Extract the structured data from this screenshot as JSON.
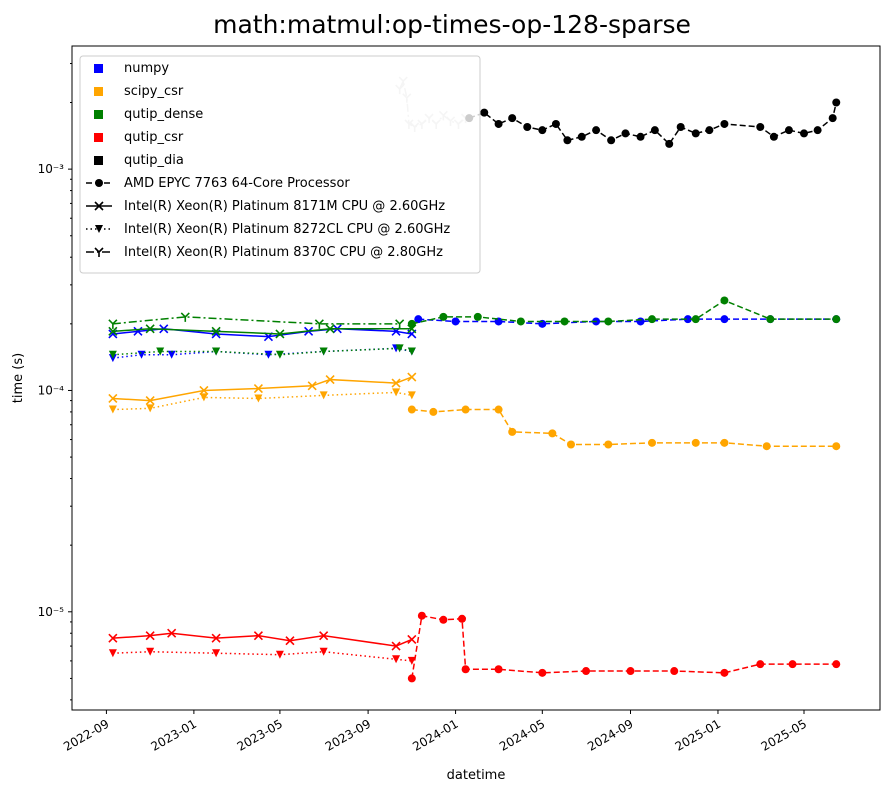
{
  "chart_data": {
    "type": "line",
    "title": "math:matmul:op-times-op-128-sparse",
    "xlabel": "datetime",
    "ylabel": "time (s)",
    "yscale": "log",
    "ylim": [
      3.6e-06,
      0.0036
    ],
    "xlim": [
      "2022-07-15",
      "2025-08-15"
    ],
    "grid": false,
    "legend_position": "top-left",
    "x_ticks": [
      "2022-09",
      "2023-01",
      "2023-05",
      "2023-09",
      "2024-01",
      "2024-05",
      "2024-09",
      "2025-01",
      "2025-05"
    ],
    "y_ticks": [
      {
        "value": 1e-05,
        "label": "10⁻⁵"
      },
      {
        "value": 0.0001,
        "label": "10⁻⁴"
      },
      {
        "value": 0.001,
        "label": "10⁻³"
      }
    ],
    "library_legend": [
      {
        "name": "numpy",
        "color": "#0000ff"
      },
      {
        "name": "scipy_csr",
        "color": "#ffa500"
      },
      {
        "name": "qutip_dense",
        "color": "#008000"
      },
      {
        "name": "qutip_csr",
        "color": "#ff0000"
      },
      {
        "name": "qutip_dia",
        "color": "#000000"
      }
    ],
    "cpu_legend": [
      {
        "name": "AMD EPYC 7763 64-Core Processor",
        "linestyle": "dashed",
        "marker": "circle"
      },
      {
        "name": "Intel(R) Xeon(R) Platinum 8171M CPU @ 2.60GHz",
        "linestyle": "solid",
        "marker": "x"
      },
      {
        "name": "Intel(R) Xeon(R) Platinum 8272CL CPU @ 2.60GHz",
        "linestyle": "dotted",
        "marker": "triangle-down"
      },
      {
        "name": "Intel(R) Xeon(R) Platinum 8370C CPU @ 2.80GHz",
        "linestyle": "dashdot",
        "marker": "tri-down"
      }
    ],
    "series": [
      {
        "library": "qutip_dia",
        "cpu": "Intel(R) Xeon(R) Platinum 8370C CPU @ 2.80GHz",
        "color": "#cccccc",
        "points": [
          [
            "2023-10-15",
            0.0023
          ],
          [
            "2023-10-20",
            0.0025
          ],
          [
            "2023-10-25",
            0.0021
          ],
          [
            "2023-10-28",
            0.0016
          ],
          [
            "2023-11-05",
            0.00155
          ],
          [
            "2023-11-15",
            0.0016
          ],
          [
            "2023-11-25",
            0.0017
          ],
          [
            "2023-12-05",
            0.0016
          ],
          [
            "2023-12-15",
            0.00175
          ],
          [
            "2023-12-25",
            0.00165
          ],
          [
            "2024-01-05",
            0.0016
          ],
          [
            "2024-01-15",
            0.0017
          ]
        ]
      },
      {
        "library": "qutip_dia",
        "cpu": "AMD EPYC 7763 64-Core Processor",
        "color": "#000000",
        "points": [
          [
            "2024-01-20",
            0.0017
          ],
          [
            "2024-02-10",
            0.0018
          ],
          [
            "2024-03-01",
            0.0016
          ],
          [
            "2024-03-20",
            0.0017
          ],
          [
            "2024-04-10",
            0.00155
          ],
          [
            "2024-05-01",
            0.0015
          ],
          [
            "2024-05-20",
            0.0016
          ],
          [
            "2024-06-05",
            0.00135
          ],
          [
            "2024-06-25",
            0.0014
          ],
          [
            "2024-07-15",
            0.0015
          ],
          [
            "2024-08-05",
            0.00135
          ],
          [
            "2024-08-25",
            0.00145
          ],
          [
            "2024-09-15",
            0.0014
          ],
          [
            "2024-10-05",
            0.0015
          ],
          [
            "2024-10-25",
            0.0013
          ],
          [
            "2024-11-10",
            0.00155
          ],
          [
            "2024-12-01",
            0.00145
          ],
          [
            "2024-12-20",
            0.0015
          ],
          [
            "2025-01-10",
            0.0016
          ],
          [
            "2025-03-01",
            0.00155
          ],
          [
            "2025-03-20",
            0.0014
          ],
          [
            "2025-04-10",
            0.0015
          ],
          [
            "2025-05-01",
            0.00145
          ],
          [
            "2025-05-20",
            0.0015
          ],
          [
            "2025-06-10",
            0.0017
          ],
          [
            "2025-06-15",
            0.002
          ]
        ]
      },
      {
        "library": "numpy",
        "cpu": "Intel(R) Xeon(R) Platinum 8171M CPU @ 2.60GHz",
        "color": "#0000ff",
        "points": [
          [
            "2022-09-10",
            0.00018
          ],
          [
            "2022-10-15",
            0.000185
          ],
          [
            "2022-11-20",
            0.00019
          ],
          [
            "2023-02-01",
            0.00018
          ],
          [
            "2023-04-15",
            0.000175
          ],
          [
            "2023-06-10",
            0.000185
          ],
          [
            "2023-07-20",
            0.00019
          ],
          [
            "2023-10-10",
            0.000185
          ],
          [
            "2023-11-01",
            0.00018
          ]
        ]
      },
      {
        "library": "numpy",
        "cpu": "Intel(R) Xeon(R) Platinum 8272CL CPU @ 2.60GHz",
        "color": "#0000ff",
        "points": [
          [
            "2022-09-10",
            0.00014
          ],
          [
            "2022-10-20",
            0.000145
          ],
          [
            "2022-12-01",
            0.000145
          ],
          [
            "2023-02-01",
            0.00015
          ],
          [
            "2023-04-15",
            0.000145
          ],
          [
            "2023-07-01",
            0.00015
          ],
          [
            "2023-10-10",
            0.000155
          ],
          [
            "2023-11-01",
            0.00015
          ]
        ]
      },
      {
        "library": "numpy",
        "cpu": "AMD EPYC 7763 64-Core Processor",
        "color": "#0000ff",
        "points": [
          [
            "2023-11-10",
            0.00021
          ],
          [
            "2024-01-01",
            0.000205
          ],
          [
            "2024-03-01",
            0.000205
          ],
          [
            "2024-05-01",
            0.0002
          ],
          [
            "2024-07-15",
            0.000205
          ],
          [
            "2024-09-15",
            0.000205
          ],
          [
            "2024-11-20",
            0.00021
          ],
          [
            "2025-01-10",
            0.00021
          ],
          [
            "2025-03-15",
            0.00021
          ],
          [
            "2025-06-15",
            0.00021
          ]
        ]
      },
      {
        "library": "qutip_dense",
        "cpu": "Intel(R) Xeon(R) Platinum 8171M CPU @ 2.60GHz",
        "color": "#008000",
        "points": [
          [
            "2022-09-10",
            0.000185
          ],
          [
            "2022-11-01",
            0.00019
          ],
          [
            "2023-02-01",
            0.000185
          ],
          [
            "2023-05-01",
            0.00018
          ],
          [
            "2023-07-10",
            0.00019
          ],
          [
            "2023-11-01",
            0.00019
          ]
        ]
      },
      {
        "library": "qutip_dense",
        "cpu": "Intel(R) Xeon(R) Platinum 8272CL CPU @ 2.60GHz",
        "color": "#008000",
        "points": [
          [
            "2022-09-10",
            0.000145
          ],
          [
            "2022-11-15",
            0.00015
          ],
          [
            "2023-02-01",
            0.00015
          ],
          [
            "2023-05-01",
            0.000145
          ],
          [
            "2023-07-01",
            0.00015
          ],
          [
            "2023-10-15",
            0.000155
          ],
          [
            "2023-11-01",
            0.00015
          ]
        ]
      },
      {
        "library": "qutip_dense",
        "cpu": "Intel(R) Xeon(R) Platinum 8370C CPU @ 2.80GHz",
        "color": "#008000",
        "points": [
          [
            "2022-09-10",
            0.0002
          ],
          [
            "2022-12-20",
            0.000215
          ],
          [
            "2023-06-25",
            0.0002
          ],
          [
            "2023-10-15",
            0.0002
          ]
        ]
      },
      {
        "library": "qutip_dense",
        "cpu": "AMD EPYC 7763 64-Core Processor",
        "color": "#008000",
        "points": [
          [
            "2023-11-01",
            0.0002
          ],
          [
            "2023-12-15",
            0.000215
          ],
          [
            "2024-02-01",
            0.000215
          ],
          [
            "2024-04-01",
            0.000205
          ],
          [
            "2024-06-01",
            0.000205
          ],
          [
            "2024-08-01",
            0.000205
          ],
          [
            "2024-10-01",
            0.00021
          ],
          [
            "2024-12-01",
            0.00021
          ],
          [
            "2025-01-10",
            0.000255
          ],
          [
            "2025-03-15",
            0.00021
          ],
          [
            "2025-06-15",
            0.00021
          ]
        ]
      },
      {
        "library": "scipy_csr",
        "cpu": "Intel(R) Xeon(R) Platinum 8171M CPU @ 2.60GHz",
        "color": "#ffa500",
        "points": [
          [
            "2022-09-10",
            9.2e-05
          ],
          [
            "2022-11-01",
            9e-05
          ],
          [
            "2023-01-15",
            0.0001
          ],
          [
            "2023-04-01",
            0.000102
          ],
          [
            "2023-06-15",
            0.000105
          ],
          [
            "2023-07-10",
            0.000112
          ],
          [
            "2023-10-10",
            0.000108
          ],
          [
            "2023-11-01",
            0.000115
          ]
        ]
      },
      {
        "library": "scipy_csr",
        "cpu": "Intel(R) Xeon(R) Platinum 8272CL CPU @ 2.60GHz",
        "color": "#ffa500",
        "points": [
          [
            "2022-09-10",
            8.2e-05
          ],
          [
            "2022-11-01",
            8.3e-05
          ],
          [
            "2023-01-15",
            9.3e-05
          ],
          [
            "2023-04-01",
            9.2e-05
          ],
          [
            "2023-07-01",
            9.5e-05
          ],
          [
            "2023-10-10",
            9.8e-05
          ],
          [
            "2023-11-01",
            9.5e-05
          ]
        ]
      },
      {
        "library": "scipy_csr",
        "cpu": "AMD EPYC 7763 64-Core Processor",
        "color": "#ffa500",
        "points": [
          [
            "2023-11-01",
            8.2e-05
          ],
          [
            "2023-12-01",
            8e-05
          ],
          [
            "2024-01-15",
            8.2e-05
          ],
          [
            "2024-03-01",
            8.2e-05
          ],
          [
            "2024-03-20",
            6.5e-05
          ],
          [
            "2024-05-15",
            6.4e-05
          ],
          [
            "2024-06-10",
            5.7e-05
          ],
          [
            "2024-08-01",
            5.7e-05
          ],
          [
            "2024-10-01",
            5.8e-05
          ],
          [
            "2024-12-01",
            5.8e-05
          ],
          [
            "2025-01-10",
            5.8e-05
          ],
          [
            "2025-03-10",
            5.6e-05
          ],
          [
            "2025-06-15",
            5.6e-05
          ]
        ]
      },
      {
        "library": "qutip_csr",
        "cpu": "Intel(R) Xeon(R) Platinum 8171M CPU @ 2.60GHz",
        "color": "#ff0000",
        "points": [
          [
            "2022-09-10",
            7.6e-06
          ],
          [
            "2022-11-01",
            7.8e-06
          ],
          [
            "2022-12-01",
            8e-06
          ],
          [
            "2023-02-01",
            7.6e-06
          ],
          [
            "2023-04-01",
            7.8e-06
          ],
          [
            "2023-05-15",
            7.4e-06
          ],
          [
            "2023-07-01",
            7.8e-06
          ],
          [
            "2023-10-10",
            7e-06
          ],
          [
            "2023-11-01",
            7.5e-06
          ]
        ]
      },
      {
        "library": "qutip_csr",
        "cpu": "Intel(R) Xeon(R) Platinum 8272CL CPU @ 2.60GHz",
        "color": "#ff0000",
        "points": [
          [
            "2022-09-10",
            6.5e-06
          ],
          [
            "2022-11-01",
            6.6e-06
          ],
          [
            "2023-02-01",
            6.5e-06
          ],
          [
            "2023-05-01",
            6.4e-06
          ],
          [
            "2023-07-01",
            6.6e-06
          ],
          [
            "2023-10-10",
            6.1e-06
          ],
          [
            "2023-11-01",
            6e-06
          ]
        ]
      },
      {
        "library": "qutip_csr",
        "cpu": "AMD EPYC 7763 64-Core Processor",
        "color": "#ff0000",
        "points": [
          [
            "2023-11-01",
            5e-06
          ],
          [
            "2023-11-15",
            9.6e-06
          ],
          [
            "2023-12-15",
            9.2e-06
          ],
          [
            "2024-01-10",
            9.3e-06
          ],
          [
            "2024-01-15",
            5.5e-06
          ],
          [
            "2024-03-01",
            5.5e-06
          ],
          [
            "2024-05-01",
            5.3e-06
          ],
          [
            "2024-07-01",
            5.4e-06
          ],
          [
            "2024-09-01",
            5.4e-06
          ],
          [
            "2024-11-01",
            5.4e-06
          ],
          [
            "2025-01-10",
            5.3e-06
          ],
          [
            "2025-03-01",
            5.8e-06
          ],
          [
            "2025-04-15",
            5.8e-06
          ],
          [
            "2025-06-15",
            5.8e-06
          ]
        ]
      }
    ]
  }
}
